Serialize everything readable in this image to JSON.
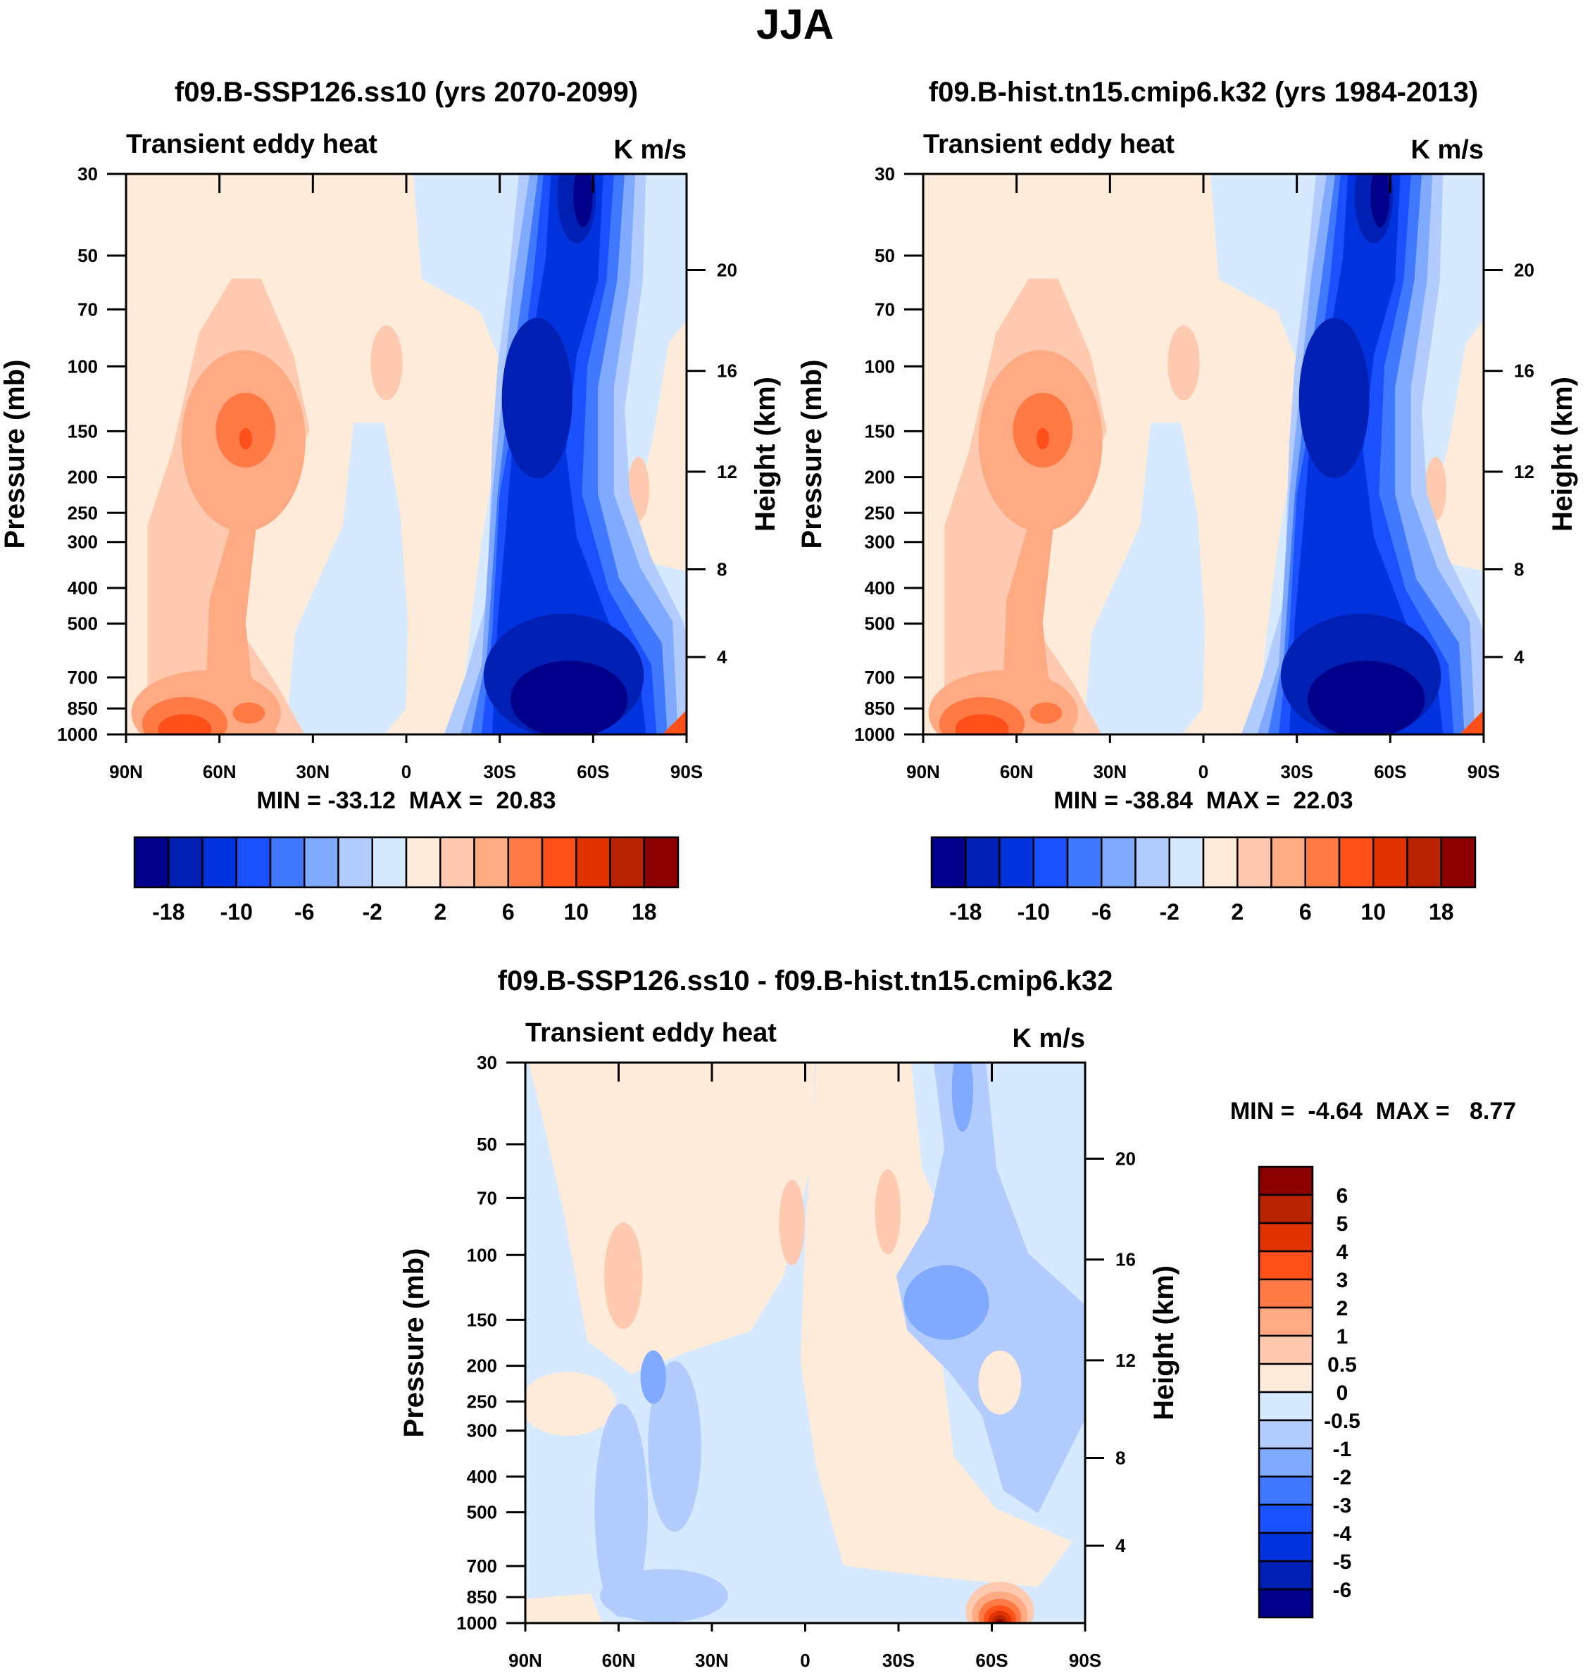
{
  "title": "JJA",
  "panels": [
    {
      "title": "f09.B-SSP126.ss10 (yrs 2070-2099)",
      "left_label": "Transient eddy heat",
      "right_label": "K m/s",
      "ylabel": "Pressure (mb)",
      "y2label": "Height (km)",
      "stats": "MIN = -33.12  MAX =  20.83"
    },
    {
      "title": "f09.B-hist.tn15.cmip6.k32 (yrs 1984-2013)",
      "left_label": "Transient eddy heat",
      "right_label": "K m/s",
      "ylabel": "Pressure (mb)",
      "y2label": "Height (km)",
      "stats": "MIN = -38.84  MAX =  22.03"
    },
    {
      "title": "f09.B-SSP126.ss10 - f09.B-hist.tn15.cmip6.k32",
      "left_label": "Transient eddy heat",
      "right_label": "K m/s",
      "ylabel": "Pressure (mb)",
      "y2label": "Height (km)",
      "stats": "MIN =  -4.64  MAX =   8.77"
    }
  ],
  "chart_data": {
    "type": "heatmap",
    "variable": "Transient eddy heat",
    "units": "K m/s",
    "season": "JJA",
    "x_axis": {
      "labels": [
        "90N",
        "60N",
        "30N",
        "0",
        "30S",
        "60S",
        "90S"
      ],
      "range": [
        90,
        -90
      ]
    },
    "y_axis": {
      "label": "Pressure (mb)",
      "scale": "log",
      "range": [
        1000,
        30
      ],
      "ticks": [
        30,
        50,
        70,
        100,
        150,
        200,
        250,
        300,
        400,
        500,
        700,
        850,
        1000
      ]
    },
    "y2_axis": {
      "label": "Height (km)",
      "ticks": [
        4,
        8,
        12,
        16,
        20
      ]
    },
    "colors": [
      "#00008B",
      "#0020B4",
      "#0033DD",
      "#1A50FF",
      "#4078FF",
      "#80AAFF",
      "#B3CCFF",
      "#D6E9FF",
      "#FFEBD9",
      "#FFCAB0",
      "#FFAA82",
      "#FF7A45",
      "#FF5019",
      "#E03300",
      "#B82200",
      "#8B0000"
    ],
    "colorbar_main": {
      "orientation": "horizontal",
      "labels": [
        "-18",
        "-10",
        "-6",
        "-2",
        "2",
        "6",
        "10",
        "18"
      ]
    },
    "colorbar_diff": {
      "orientation": "vertical",
      "labels": [
        "6",
        "5",
        "4",
        "3",
        "2",
        "1",
        "0.5",
        "0",
        "-0.5",
        "-1",
        "-2",
        "-3",
        "-4",
        "-5",
        "-6"
      ]
    },
    "panels": [
      {
        "name": "SSP126",
        "min": -33.12,
        "max": 20.83
      },
      {
        "name": "hist",
        "min": -38.84,
        "max": 22.03
      },
      {
        "name": "difference",
        "min": -4.64,
        "max": 8.77
      }
    ]
  }
}
